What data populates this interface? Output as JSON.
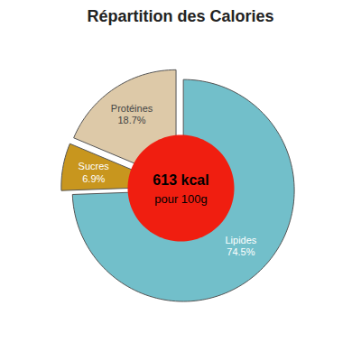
{
  "chart_data": {
    "type": "pie",
    "title": "Répartition des Calories",
    "categories": [
      "Lipides",
      "Sucres",
      "Protéines"
    ],
    "values": [
      74.5,
      6.9,
      18.7
    ],
    "value_labels": [
      "74.5%",
      "6.9%",
      "18.7%"
    ],
    "colors": [
      "#72bfca",
      "#c8961e",
      "#ddc9a8"
    ],
    "data_labels": true,
    "annotations": [
      "613 kcal",
      "pour 100g"
    ]
  }
}
